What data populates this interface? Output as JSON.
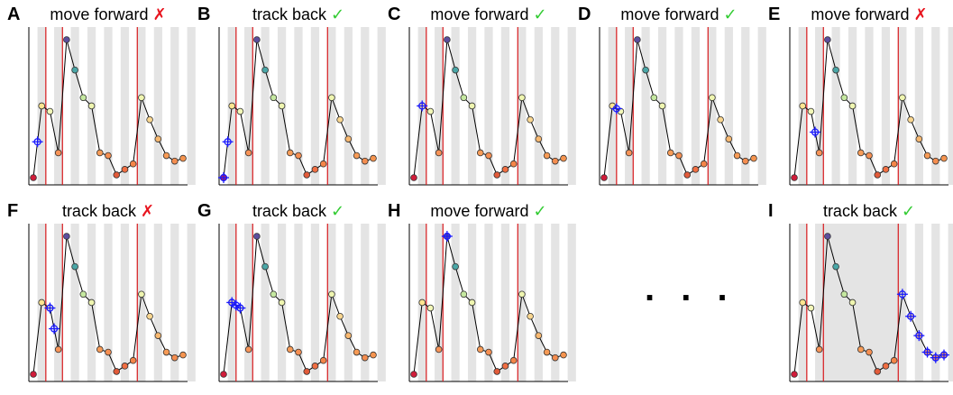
{
  "ellipsis": ". . .",
  "colors": {
    "boundary": "#d7191c",
    "marker": "#1a1aff",
    "stripe": "#e4e4e4",
    "line": "#000000",
    "check": "#33cc33",
    "cross": "#e8141e"
  },
  "signal": [
    0,
    5.2,
    4.8,
    1.8,
    10,
    7.8,
    5.8,
    5.2,
    1.8,
    1.6,
    0.2,
    0.6,
    1,
    5.8,
    4.2,
    2.8,
    1.6,
    1.2,
    1.4
  ],
  "signal_colors": [
    "#d01c3a",
    "#fee590",
    "#f2f7b8",
    "#f79458",
    "#5c4f9e",
    "#4aa6a6",
    "#c5e8a0",
    "#eff5b0",
    "#f79c58",
    "#f68f52",
    "#e25b3a",
    "#f06e42",
    "#f48548",
    "#eff5b0",
    "#f9d690",
    "#f8b870",
    "#f69a55",
    "#f48d4f",
    "#f5944f"
  ],
  "panels": [
    {
      "letter": "A",
      "title": "move forward",
      "mark": "✗",
      "ok": false,
      "boundaries": [
        1.5,
        3.5,
        12.5
      ],
      "markers": [
        0.5
      ],
      "band": []
    },
    {
      "letter": "B",
      "title": "track back",
      "mark": "✓",
      "ok": true,
      "boundaries": [
        1.5,
        3.5,
        12.5
      ],
      "markers": [
        0,
        0.5
      ],
      "band": []
    },
    {
      "letter": "C",
      "title": "move forward",
      "mark": "✓",
      "ok": true,
      "boundaries": [
        1.5,
        3.5,
        12.5
      ],
      "markers": [
        1
      ],
      "band": []
    },
    {
      "letter": "D",
      "title": "move forward",
      "mark": "✓",
      "ok": true,
      "boundaries": [
        1.5,
        3.5,
        12.5
      ],
      "markers": [
        1.5
      ],
      "band": []
    },
    {
      "letter": "E",
      "title": "move forward",
      "mark": "✗",
      "ok": false,
      "boundaries": [
        1.5,
        3.5,
        12.5
      ],
      "markers": [
        2.5
      ],
      "band": []
    },
    {
      "letter": "F",
      "title": "track back",
      "mark": "✗",
      "ok": false,
      "boundaries": [
        1.5,
        3.5,
        12.5
      ],
      "markers": [
        2.0,
        2.5
      ],
      "band": []
    },
    {
      "letter": "G",
      "title": "track back",
      "mark": "✓",
      "ok": true,
      "boundaries": [
        1.5,
        3.5,
        12.5
      ],
      "markers": [
        1,
        1.5,
        2
      ],
      "band": []
    },
    {
      "letter": "H",
      "title": "move forward",
      "mark": "✓",
      "ok": true,
      "boundaries": [
        1.5,
        3.5,
        12.5
      ],
      "markers": [
        4
      ],
      "band": []
    },
    {
      "letter": "I",
      "title": "track back",
      "mark": "✓",
      "ok": true,
      "boundaries": [
        1.5,
        3.5,
        12.5
      ],
      "markers": [
        13,
        14,
        15,
        16,
        17,
        18
      ],
      "band": [
        3.5,
        12.5
      ]
    }
  ]
}
